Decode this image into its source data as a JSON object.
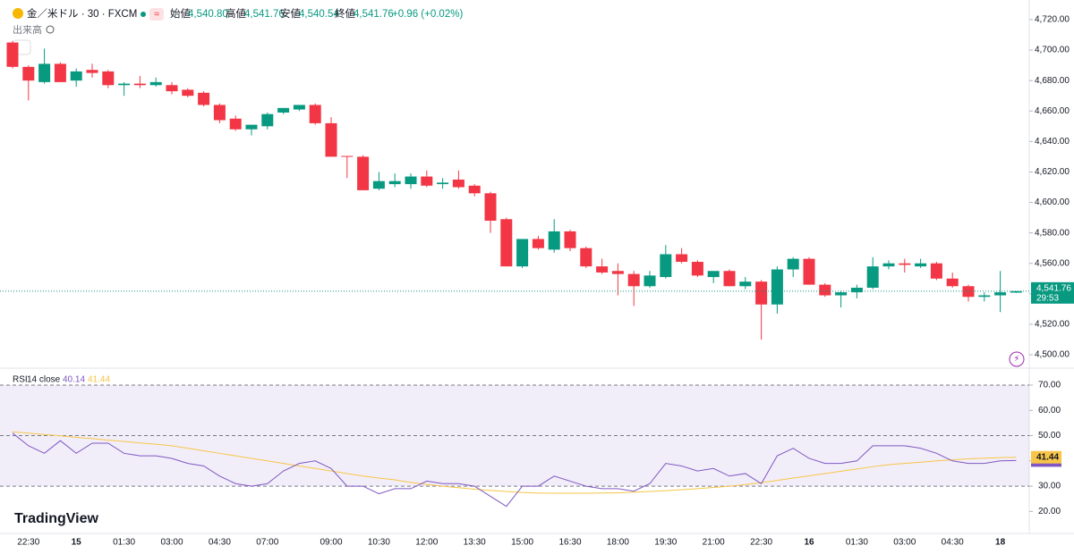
{
  "header": {
    "symbol": "金／米ドル · 30 · FXCM",
    "open": {
      "label": "始値",
      "value": "4,540.80"
    },
    "high": {
      "label": "高値",
      "value": "4,541.76"
    },
    "low": {
      "label": "安値",
      "value": "4,540.54"
    },
    "close": {
      "label": "終値",
      "value": "4,541.76"
    },
    "change": "+0.96 (+0.02%)",
    "volume_label": "出来高",
    "logo": "TradingView"
  },
  "chart_data": [
    {
      "type": "candlestick",
      "categories": [
        null,
        "22:30",
        null,
        null,
        "15",
        null,
        null,
        "01:30",
        null,
        null,
        "03:00",
        null,
        null,
        "04:30",
        null,
        null,
        "07:00",
        null,
        null,
        null,
        "09:00",
        null,
        null,
        "10:30",
        null,
        null,
        "12:00",
        null,
        null,
        "13:30",
        null,
        null,
        "15:00",
        null,
        null,
        "16:30",
        null,
        null,
        "18:00",
        null,
        null,
        "19:30",
        null,
        null,
        "21:00",
        null,
        null,
        "22:30",
        null,
        null,
        "16",
        null,
        null,
        "01:30",
        null,
        null,
        "03:00",
        null,
        null,
        "04:30",
        null,
        null,
        "18",
        null
      ],
      "open": [
        4705,
        4689,
        4679,
        4691,
        4680,
        4687,
        4686,
        4677,
        4678,
        4677,
        4677,
        4674,
        4672,
        4664,
        4655,
        4648,
        4650,
        4659,
        4661,
        4664,
        4652,
        4630.5,
        4630,
        4609,
        4612,
        4612,
        4617,
        4612,
        4615,
        4611,
        4606,
        4589,
        4558,
        4576,
        4569,
        4581,
        4570,
        4558,
        4555,
        4553,
        4545,
        4551,
        4566,
        4561,
        4551,
        4555,
        4545,
        4548,
        4533,
        4556,
        4563,
        4546,
        4539,
        4541,
        4544,
        4558,
        4560,
        4558,
        4560,
        4550,
        4545,
        4538,
        4539,
        4540.8
      ],
      "high": [
        4706,
        4690,
        4701,
        4692,
        4688,
        4691,
        4687,
        4679,
        4683,
        4682,
        4679,
        4675,
        4673,
        4665,
        4657,
        4651,
        4659,
        4662,
        4664,
        4665,
        4656,
        4630.5,
        4631,
        4620,
        4619,
        4619,
        4621,
        4616,
        4621,
        4612,
        4607,
        4590,
        4575,
        4578,
        4589,
        4582,
        4571,
        4563,
        4560,
        4555,
        4555,
        4572,
        4570,
        4562,
        4554,
        4556,
        4551,
        4549,
        4558,
        4564,
        4564,
        4547,
        4542,
        4546,
        4564,
        4562,
        4563,
        4563,
        4561,
        4554,
        4546,
        4541,
        4555,
        4541.76
      ],
      "low": [
        4688,
        4667,
        4678,
        4679,
        4676,
        4682,
        4675,
        4670,
        4675,
        4676,
        4671,
        4669,
        4663,
        4652,
        4647,
        4644,
        4648,
        4658,
        4660,
        4651,
        4630,
        4616,
        4608,
        4608,
        4610,
        4609,
        4610,
        4609,
        4609,
        4604,
        4580,
        4558,
        4557,
        4569,
        4567,
        4568,
        4557,
        4553,
        4539,
        4532,
        4544,
        4550,
        4560,
        4551,
        4547,
        4545,
        4543,
        4510,
        4527,
        4551,
        4546,
        4538,
        4531,
        4537,
        4543,
        4556,
        4554,
        4557,
        4549,
        4544,
        4535,
        4535,
        4528,
        4540.54
      ],
      "close": [
        4689,
        4680,
        4691,
        4679,
        4686,
        4685,
        4677,
        4678,
        4677,
        4679,
        4673,
        4670,
        4664,
        4654,
        4648,
        4651,
        4658,
        4662,
        4664,
        4652,
        4630,
        4630,
        4608,
        4614,
        4614,
        4617,
        4611,
        4613,
        4610,
        4606,
        4588,
        4558,
        4576,
        4570,
        4581,
        4570,
        4558,
        4554,
        4553,
        4545,
        4552,
        4566,
        4561,
        4552,
        4555,
        4545,
        4548,
        4533,
        4556,
        4563,
        4546,
        4539,
        4541,
        4544,
        4558,
        4560,
        4559,
        4560,
        4550,
        4545,
        4538,
        4539,
        4541,
        4541.76
      ],
      "up_color": "#089981",
      "down_color": "#f23645",
      "ylim": [
        4491.2,
        4732.9
      ],
      "yticks": [
        {
          "value": 4500,
          "label": "4,500.00"
        },
        {
          "value": 4520,
          "label": "4,520.00"
        },
        {
          "value": 4540,
          "label": "4,540.00"
        },
        {
          "value": 4560,
          "label": "4,560.00"
        },
        {
          "value": 4580,
          "label": "4,580.00"
        },
        {
          "value": 4600,
          "label": "4,600.00"
        },
        {
          "value": 4620,
          "label": "4,620.00"
        },
        {
          "value": 4640,
          "label": "4,640.00"
        },
        {
          "value": 4660,
          "label": "4,660.00"
        },
        {
          "value": 4680,
          "label": "4,680.00"
        },
        {
          "value": 4700,
          "label": "4,700.00"
        },
        {
          "value": 4720,
          "label": "4,720.00"
        }
      ],
      "last_price": {
        "value": 4541.76,
        "label": "4,541.76",
        "countdown": "29:53"
      }
    },
    {
      "type": "line",
      "title": "RSI",
      "subtitle": "14 close",
      "series": [
        {
          "color": "#7e57c2",
          "values": [
            51,
            46,
            43,
            48,
            43,
            47,
            47,
            43,
            42,
            42,
            41,
            39,
            38,
            34,
            31,
            30,
            31,
            36,
            39,
            40,
            37,
            30,
            30,
            27,
            29,
            29,
            32,
            31,
            31,
            30,
            26,
            22,
            30,
            30,
            34,
            32,
            30,
            29,
            29,
            28,
            31,
            39,
            38,
            36,
            37,
            34,
            35,
            31,
            42,
            45,
            41,
            39,
            39,
            40,
            46,
            46,
            46,
            45,
            43,
            40,
            39,
            39,
            40,
            40.14
          ]
        },
        {
          "color": "#f7c548",
          "values": [
            51.5,
            51,
            50.4,
            49.9,
            49.3,
            48.8,
            48.2,
            47.7,
            47.1,
            46.6,
            46,
            45,
            44,
            43,
            42,
            41,
            40,
            39,
            38,
            37,
            36,
            35,
            34,
            33.2,
            32.5,
            31.5,
            30.7,
            30,
            29.4,
            28.8,
            28.3,
            27.9,
            27.5,
            27.3,
            27.2,
            27.2,
            27.2,
            27.3,
            27.4,
            27.6,
            27.9,
            28.2,
            28.6,
            29,
            29.5,
            30,
            30.6,
            31.4,
            32.3,
            33.2,
            34.1,
            35,
            35.9,
            36.8,
            37.7,
            38.5,
            39,
            39.5,
            40,
            40.4,
            40.8,
            41.1,
            41.3,
            41.44
          ]
        }
      ],
      "ylim": [
        12,
        76.7
      ],
      "yticks": [
        {
          "value": 20,
          "label": "20.00"
        },
        {
          "value": 30,
          "label": "30.00"
        },
        {
          "value": 40,
          "label": "40.00"
        },
        {
          "value": 50,
          "label": "50.00"
        },
        {
          "value": 60,
          "label": "60.00"
        },
        {
          "value": 70,
          "label": "70.00"
        }
      ],
      "band": [
        30,
        70
      ],
      "midline": 50,
      "band_color": "#7e57c2"
    }
  ]
}
